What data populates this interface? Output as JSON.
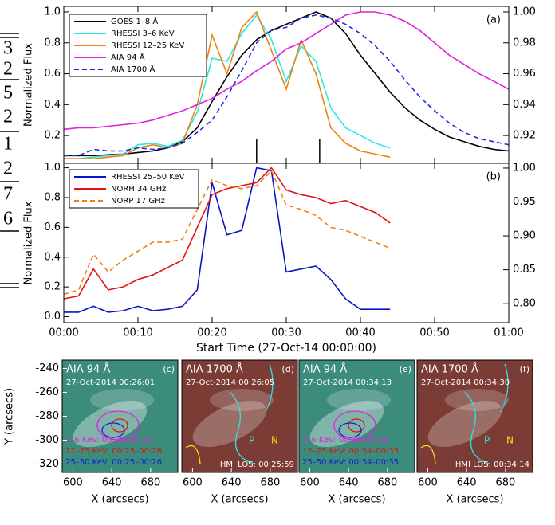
{
  "margin_fragments": [
    "3",
    "2",
    "5",
    "2",
    "1",
    "2",
    "7",
    "6"
  ],
  "chart_data": [
    {
      "type": "line",
      "letter": "(a)",
      "ylabel": "Normalized Flux",
      "x": [
        0,
        2,
        4,
        6,
        8,
        10,
        12,
        14,
        16,
        18,
        20,
        22,
        24,
        26,
        28,
        30,
        32,
        34,
        36,
        38,
        40,
        42,
        44,
        46,
        48,
        50,
        52,
        54,
        56,
        58,
        60
      ],
      "xlim": [
        0,
        60
      ],
      "ylim": [
        0.02,
        1.036
      ],
      "y2lim": [
        0.902,
        1.0036
      ],
      "yticks": [
        0.2,
        0.4,
        0.6,
        0.8,
        {
          "value": 1,
          "label": "1.0"
        }
      ],
      "y2ticks": [
        0.92,
        0.94,
        0.96,
        0.98,
        {
          "value": 1,
          "label": "1.00"
        }
      ],
      "markers": [
        26,
        34.5
      ],
      "series": [
        {
          "name": "GOES 1–8 Å",
          "color": "#000000",
          "dash": false,
          "values": [
            0.07,
            0.07,
            0.07,
            0.075,
            0.08,
            0.09,
            0.1,
            0.12,
            0.16,
            0.25,
            0.42,
            0.58,
            0.72,
            0.82,
            0.88,
            0.92,
            0.96,
            1.0,
            0.96,
            0.86,
            0.72,
            0.6,
            0.48,
            0.38,
            0.3,
            0.24,
            0.19,
            0.16,
            0.13,
            0.11,
            0.1
          ]
        },
        {
          "name": "RHESSI 3–6 KeV",
          "color": "#2ee6e6",
          "dash": false,
          "values": [
            0.05,
            0.05,
            0.06,
            0.07,
            0.08,
            0.14,
            0.15,
            0.13,
            0.17,
            0.35,
            0.7,
            0.68,
            0.86,
            0.98,
            0.82,
            0.55,
            0.78,
            0.68,
            0.38,
            0.25,
            0.2,
            0.15,
            0.12,
            null,
            null,
            null,
            null,
            null,
            null,
            null,
            null
          ]
        },
        {
          "name": "RHESSI 12–25 KeV",
          "color": "#f0820a",
          "dash": false,
          "values": [
            0.05,
            0.05,
            0.05,
            0.06,
            0.07,
            0.12,
            0.14,
            0.12,
            0.15,
            0.4,
            0.85,
            0.6,
            0.9,
            1.0,
            0.75,
            0.5,
            0.82,
            0.6,
            0.25,
            0.15,
            0.1,
            0.08,
            0.06,
            null,
            null,
            null,
            null,
            null,
            null,
            null,
            null
          ]
        },
        {
          "name": "AIA 94 Å",
          "color": "#e020e0",
          "dash": false,
          "values": [
            0.24,
            0.25,
            0.25,
            0.26,
            0.27,
            0.28,
            0.3,
            0.33,
            0.36,
            0.4,
            0.44,
            0.5,
            0.55,
            0.62,
            0.68,
            0.76,
            0.8,
            0.86,
            0.92,
            0.98,
            1.0,
            1.0,
            0.98,
            0.94,
            0.88,
            0.8,
            0.72,
            0.66,
            0.6,
            0.55,
            0.5
          ]
        },
        {
          "name": "AIA 1700 Å",
          "color": "#1c2ee0",
          "dash": true,
          "values": [
            0.07,
            0.07,
            0.11,
            0.1,
            0.1,
            0.12,
            0.11,
            0.12,
            0.15,
            0.22,
            0.3,
            0.45,
            0.62,
            0.8,
            0.88,
            0.9,
            0.96,
            0.98,
            0.96,
            0.92,
            0.86,
            0.78,
            0.68,
            0.56,
            0.45,
            0.36,
            0.28,
            0.22,
            0.18,
            0.16,
            0.14
          ]
        }
      ]
    },
    {
      "type": "line",
      "letter": "(b)",
      "ylabel": "Normalized Flux",
      "xlabel": "Start Time (27-Oct-14 00:00:00)",
      "x": [
        0,
        2,
        4,
        6,
        8,
        10,
        12,
        14,
        16,
        18,
        20,
        22,
        24,
        26,
        28,
        30,
        32,
        34,
        36,
        38,
        40,
        42,
        44,
        46,
        48,
        50,
        52,
        54,
        56,
        58,
        60
      ],
      "xlim": [
        0,
        60
      ],
      "ylim": [
        -0.04,
        1.03
      ],
      "y2lim": [
        0.772,
        1.007
      ],
      "xticks": [
        {
          "value": 0,
          "label": "00:00"
        },
        {
          "value": 10,
          "label": "00:10"
        },
        {
          "value": 20,
          "label": "00:20"
        },
        {
          "value": 30,
          "label": "00:30"
        },
        {
          "value": 40,
          "label": "00:40"
        },
        {
          "value": 50,
          "label": "00:50"
        },
        {
          "value": 60,
          "label": "01:00"
        }
      ],
      "yticks": [
        {
          "value": 0,
          "label": "0.0"
        },
        0.2,
        0.4,
        0.6,
        0.8,
        {
          "value": 1,
          "label": "1.0"
        }
      ],
      "y2ticks": [
        {
          "value": 0.8,
          "label": "0.80"
        },
        0.85,
        {
          "value": 0.9,
          "label": "0.90"
        },
        0.95,
        {
          "value": 1,
          "label": "1.00"
        }
      ],
      "series": [
        {
          "name": "RHESSI 25–50 KeV",
          "color": "#0a14c8",
          "dash": false,
          "values": [
            0.03,
            0.03,
            0.07,
            0.03,
            0.04,
            0.07,
            0.04,
            0.05,
            0.07,
            0.18,
            0.9,
            0.55,
            0.58,
            1.0,
            0.98,
            0.3,
            0.32,
            0.34,
            0.25,
            0.12,
            0.05,
            0.05,
            0.05,
            null,
            null,
            null,
            null,
            null,
            null,
            null,
            null
          ]
        },
        {
          "name": "NORH 34 GHz",
          "color": "#e01414",
          "dash": false,
          "values": [
            0.12,
            0.14,
            0.32,
            0.18,
            0.2,
            0.25,
            0.28,
            0.33,
            0.38,
            0.6,
            0.82,
            0.86,
            0.88,
            0.9,
            1.0,
            0.85,
            0.82,
            0.8,
            0.76,
            0.78,
            0.74,
            0.7,
            0.63,
            null,
            null,
            null,
            null,
            null,
            null,
            null,
            null
          ]
        },
        {
          "name": "NORP 17 GHz",
          "color": "#f0820a",
          "dash": true,
          "values": [
            0.15,
            0.18,
            0.42,
            0.3,
            0.38,
            0.44,
            0.5,
            0.5,
            0.52,
            0.72,
            0.92,
            0.88,
            0.86,
            0.88,
            0.98,
            0.75,
            0.72,
            0.68,
            0.6,
            0.58,
            0.54,
            0.5,
            0.46,
            null,
            null,
            null,
            null,
            null,
            null,
            null,
            null
          ]
        }
      ]
    },
    {
      "type": "image",
      "title": "AIA 94 Å",
      "subtitle": "27-Oct-2014 00:26:01",
      "letter": "(c)",
      "background": "#3c8c7c",
      "xlim": [
        589,
        708
      ],
      "ylim": [
        -327,
        -233
      ],
      "xticks": [
        600,
        640,
        680
      ],
      "yticks": [
        -240,
        -260,
        -280,
        -300,
        -320
      ],
      "xlabel": "X (arcsecs)",
      "ylabel": "Y (arcsecs)",
      "legend": [
        {
          "text": "3–6 KeV: 00:25–00:25",
          "color": "#e020e0"
        },
        {
          "text": "12–25 KeV: 00:25–00:26",
          "color": "#e01414"
        },
        {
          "text": "25–50 KeV: 00:25–00:26",
          "color": "#1020e0"
        }
      ]
    },
    {
      "type": "image",
      "title": "AIA 1700 Å",
      "subtitle": "27-Oct-2014 00:26:05",
      "letter": "(d)",
      "background": "#7a3c34",
      "xlim": [
        589,
        708
      ],
      "xticks": [
        600,
        640,
        680
      ],
      "xlabel": "X (arcsecs)",
      "note": "HMI LOS: 00:25:59",
      "pn": [
        {
          "text": "P",
          "color": "#30e0e0"
        },
        {
          "text": "N",
          "color": "#f0e020"
        }
      ]
    },
    {
      "type": "image",
      "title": "AIA 94 Å",
      "subtitle": "27-Oct-2014 00:34:13",
      "letter": "(e)",
      "background": "#3c8c7c",
      "xlim": [
        589,
        708
      ],
      "xticks": [
        600,
        640,
        680
      ],
      "xlabel": "X (arcsecs)",
      "legend": [
        {
          "text": "3–6 KeV: 00:34–00:35",
          "color": "#e020e0"
        },
        {
          "text": "12–25 KeV: 00:34–00:35",
          "color": "#e01414"
        },
        {
          "text": "25–50 KeV: 00:34–00:35",
          "color": "#1020e0"
        }
      ]
    },
    {
      "type": "image",
      "title": "AIA 1700 Å",
      "subtitle": "27-Oct-2014 00:34:30",
      "letter": "(f)",
      "background": "#7a3c34",
      "xlim": [
        589,
        708
      ],
      "xticks": [
        600,
        640,
        680
      ],
      "xlabel": "X (arcsecs)",
      "note": "HMI LOS: 00:34:14",
      "pn": [
        {
          "text": "P",
          "color": "#30e0e0"
        },
        {
          "text": "N",
          "color": "#f0e020"
        }
      ]
    }
  ]
}
